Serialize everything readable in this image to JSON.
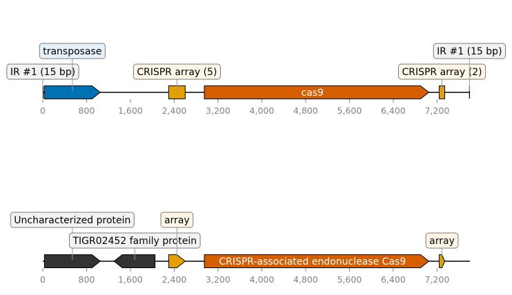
{
  "colors": {
    "transposase": "#0072b2",
    "crispr": "#e69f00",
    "cas9": "#d55e00",
    "dark": "#333333",
    "ir_box": "#f2f2f2",
    "transposase_box": "#e6f2fa",
    "crispr_box": "#fdf5e6",
    "tigr_box": "#f2f2f2"
  },
  "axis": {
    "min": 0,
    "max": 7800,
    "ticks": [
      0,
      800,
      1600,
      2400,
      3200,
      4000,
      4800,
      5600,
      6400,
      7200
    ],
    "tick_labels": [
      "0",
      "800",
      "1,600",
      "2,400",
      "3,200",
      "4,000",
      "4,800",
      "5,600",
      "6,400",
      "7,200"
    ]
  },
  "tracks": [
    {
      "id": "track1",
      "line_start": 0,
      "line_end": 7800,
      "features": [
        {
          "name": "ir-left",
          "type": "tick",
          "start": 0,
          "end": 15
        },
        {
          "name": "transposase",
          "type": "arrow",
          "start": 30,
          "end": 1050,
          "strand": 1,
          "color": "transposase"
        },
        {
          "name": "crispr-array-5",
          "type": "box",
          "start": 2300,
          "end": 2600,
          "color": "crispr"
        },
        {
          "name": "cas9",
          "type": "arrow",
          "start": 2950,
          "end": 7050,
          "strand": 1,
          "color": "cas9",
          "inner_label": "cas9"
        },
        {
          "name": "crispr-array-2",
          "type": "box",
          "start": 7240,
          "end": 7340,
          "color": "crispr"
        },
        {
          "name": "ir-right",
          "type": "tick",
          "start": 7785,
          "end": 7800
        }
      ],
      "labels": [
        {
          "text": "IR #1 (15 bp)",
          "at": 0,
          "level": 1,
          "box": "ir_box"
        },
        {
          "text": "transposase",
          "at": 540,
          "level": 2,
          "box": "transposase_box"
        },
        {
          "text": "CRISPR array (5)",
          "at": 2450,
          "level": 1,
          "box": "crispr_box"
        },
        {
          "text": "CRISPR array (2)",
          "at": 7290,
          "level": 1,
          "box": "crispr_box"
        },
        {
          "text": "IR #1 (15 bp)",
          "at": 7792,
          "level": 2,
          "box": "ir_box"
        }
      ]
    },
    {
      "id": "track2",
      "line_start": 0,
      "line_end": 7800,
      "features": [
        {
          "name": "uncharacterized-protein",
          "type": "arrow",
          "start": 30,
          "end": 1050,
          "strand": 1,
          "color": "dark"
        },
        {
          "name": "tigr02452-protein",
          "type": "arrow",
          "start": 1300,
          "end": 2050,
          "strand": -1,
          "color": "dark"
        },
        {
          "name": "array-1",
          "type": "arrow",
          "start": 2300,
          "end": 2600,
          "strand": 1,
          "color": "crispr"
        },
        {
          "name": "crispr-cas9",
          "type": "arrow",
          "start": 2950,
          "end": 7050,
          "strand": 1,
          "color": "cas9",
          "inner_label": "CRISPR-associated endonuclease Cas9"
        },
        {
          "name": "array-2",
          "type": "arrow",
          "start": 7240,
          "end": 7340,
          "strand": 1,
          "color": "crispr"
        }
      ],
      "labels": [
        {
          "text": "Uncharacterized protein",
          "at": 540,
          "level": 2,
          "box": "ir_box"
        },
        {
          "text": "TIGR02452 family protein",
          "at": 1680,
          "level": 1,
          "box": "tigr_box"
        },
        {
          "text": "array",
          "at": 2450,
          "level": 2,
          "box": "crispr_box"
        },
        {
          "text": "array",
          "at": 7290,
          "level": 1,
          "box": "crispr_box"
        }
      ]
    }
  ]
}
